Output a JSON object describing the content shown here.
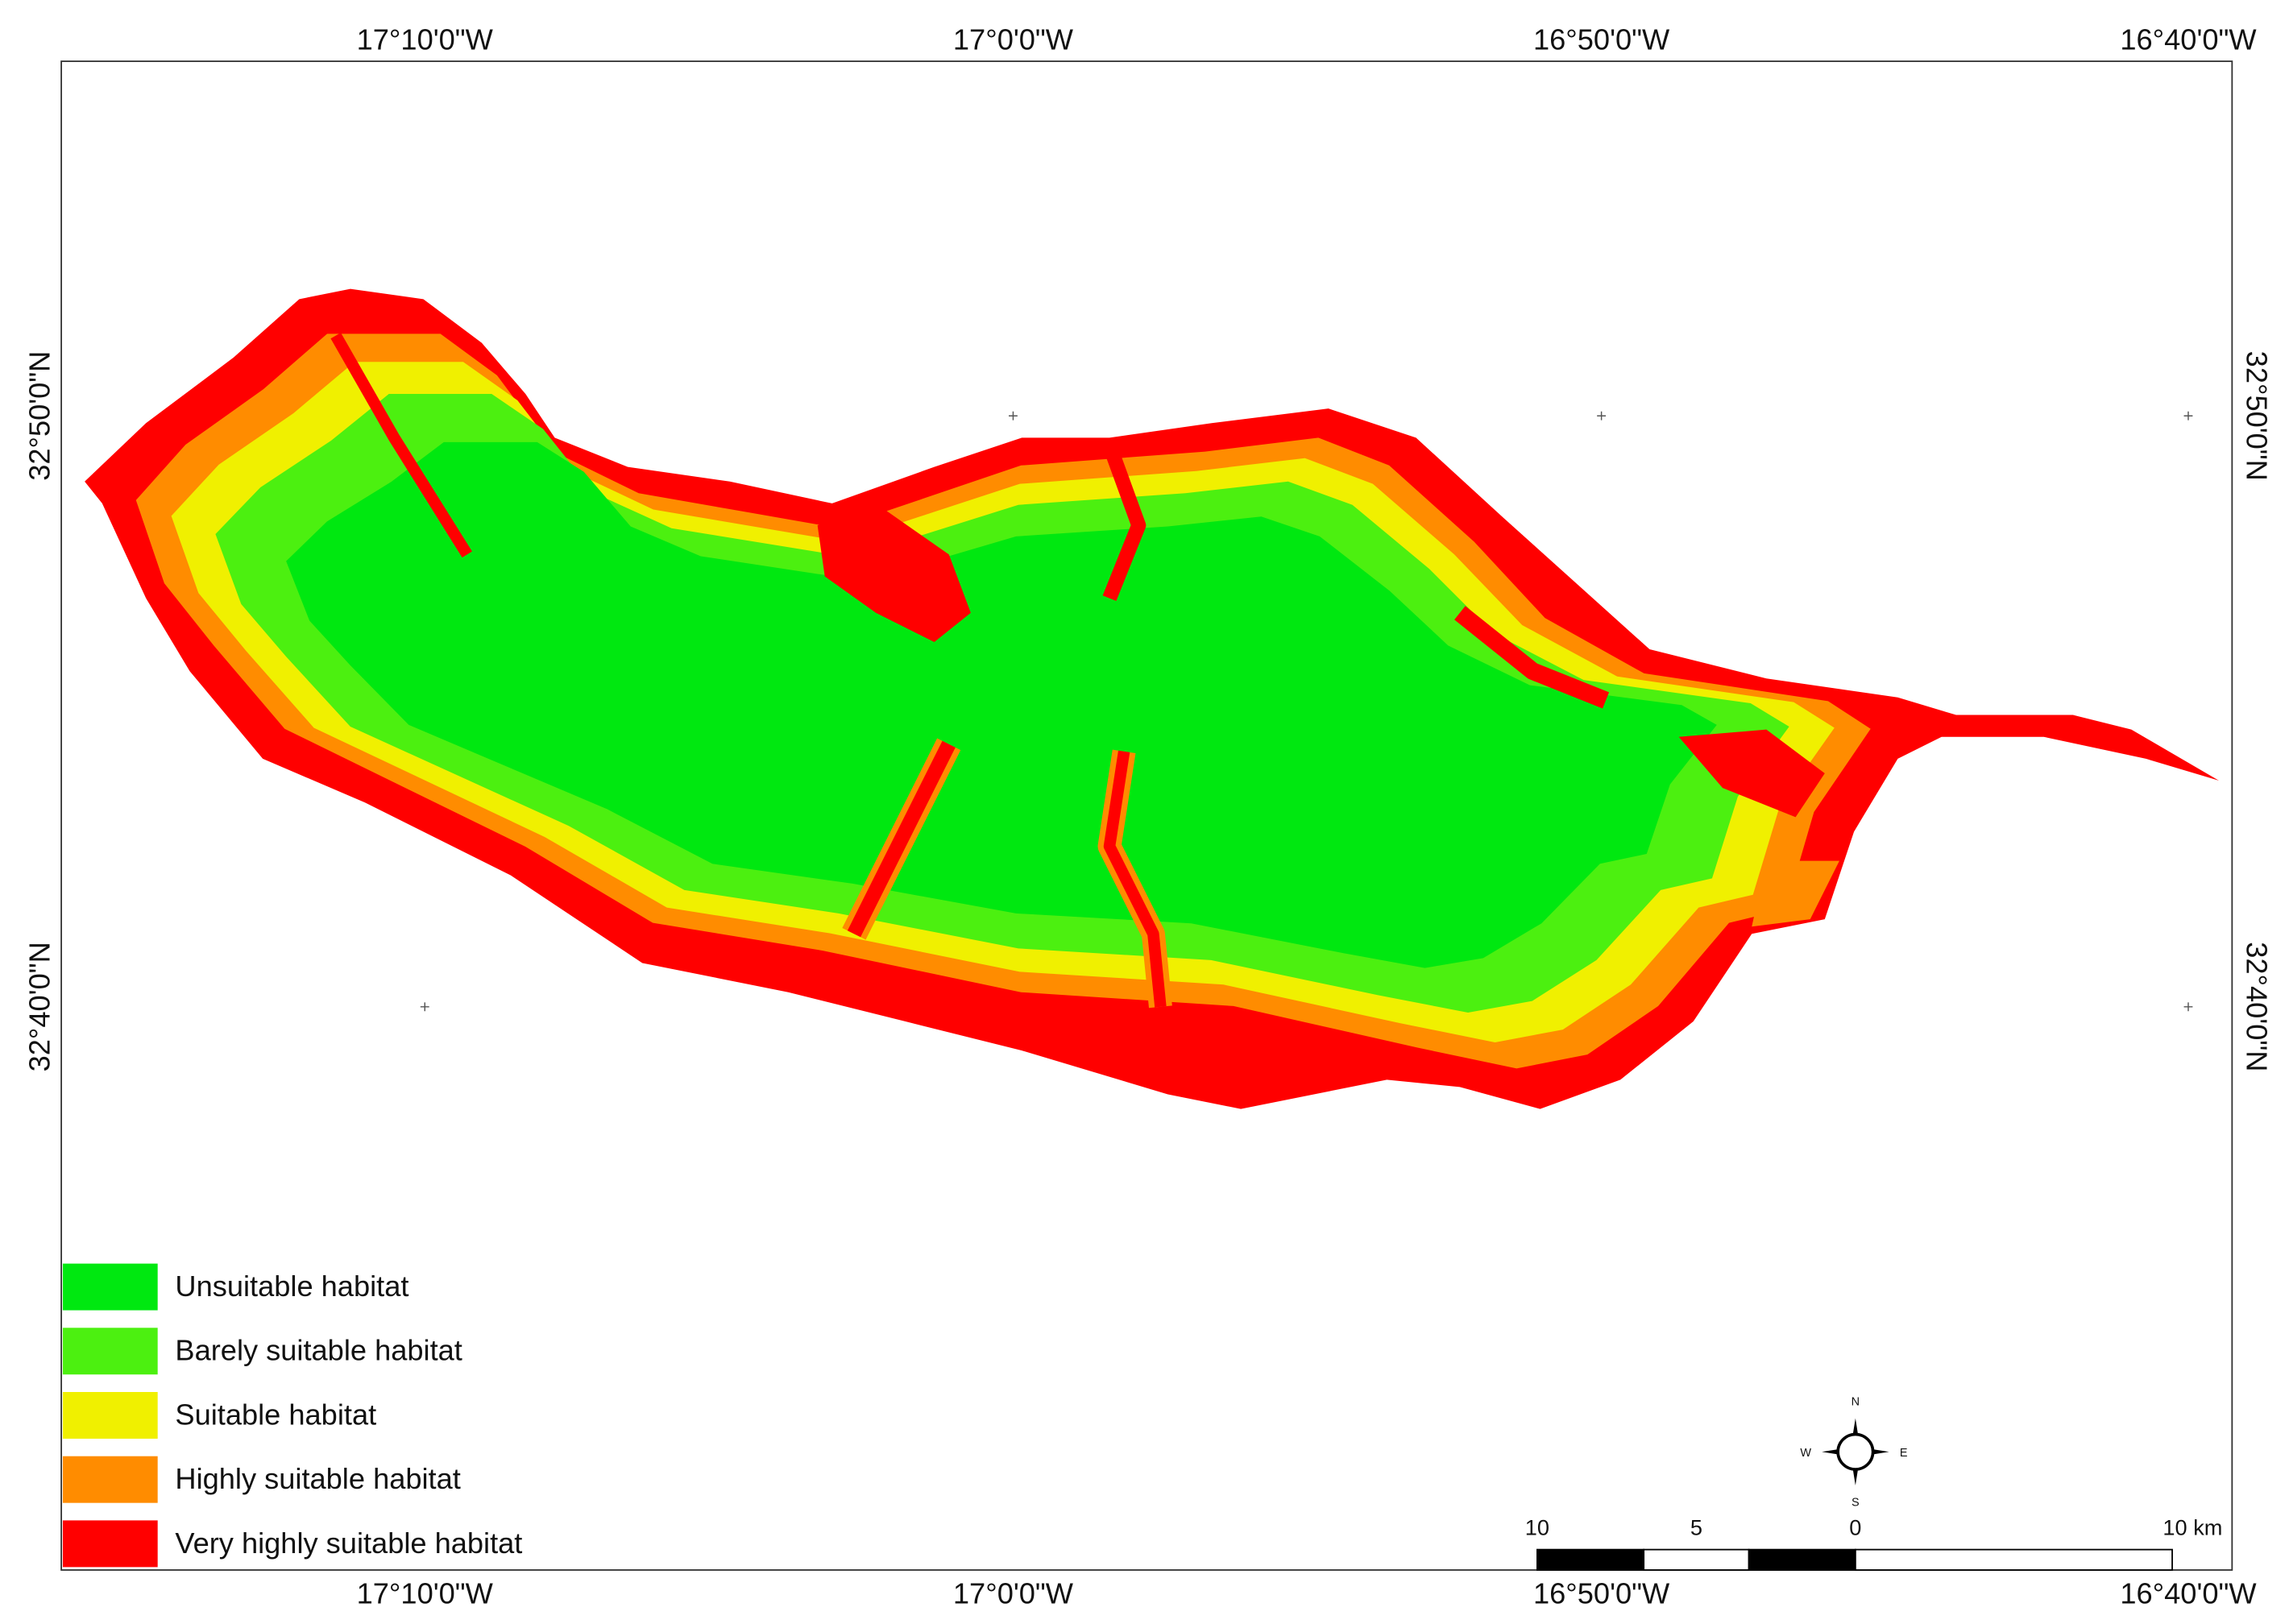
{
  "axes": {
    "top": [
      "17°10'0\"W",
      "17°0'0\"W",
      "16°50'0\"W",
      "16°40'0\"W"
    ],
    "bottom": [
      "17°10'0\"W",
      "17°0'0\"W",
      "16°50'0\"W",
      "16°40'0\"W"
    ],
    "left": [
      "32°50'0\"N",
      "32°40'0\"N"
    ],
    "right": [
      "32°50'0\"N",
      "32°40'0\"N"
    ]
  },
  "legend": [
    {
      "label": "Unsuitable habitat",
      "color": "#00e810"
    },
    {
      "label": "Barely suitable habitat",
      "color": "#4cf010"
    },
    {
      "label": "Suitable habitat",
      "color": "#f0f000"
    },
    {
      "label": "Highly suitable habitat",
      "color": "#ff8c00"
    },
    {
      "label": "Very highly suitable habitat",
      "color": "#ff0000"
    }
  ],
  "scale_bar": {
    "labels": [
      "10",
      "5",
      "0",
      "10 km"
    ]
  },
  "compass": {
    "n": "N",
    "s": "S",
    "e": "E",
    "w": "W"
  }
}
